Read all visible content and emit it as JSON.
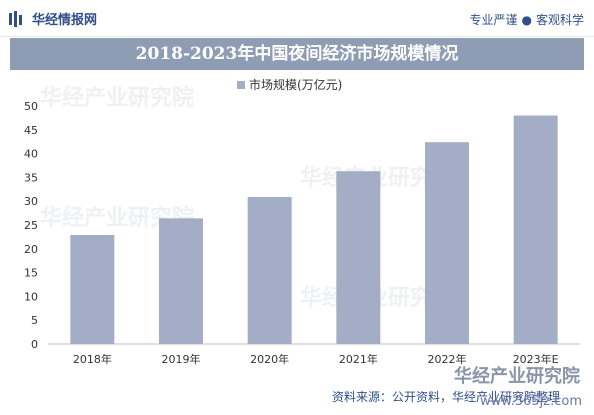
{
  "header": {
    "brand": "华经情报网",
    "slogan_left": "专业严谨",
    "slogan_sep": "●",
    "slogan_right": "客观科学"
  },
  "watermark": {
    "text": "华经产业研究院",
    "site": "www.365jz.com"
  },
  "footer": {
    "source": "资料来源：公开资料，华经产业研究院整理"
  },
  "chart_data": {
    "type": "bar",
    "title": "2018-2023年中国夜间经济市场规模情况",
    "categories": [
      "2018年",
      "2019年",
      "2020年",
      "2021年",
      "2022年",
      "2023年E"
    ],
    "series": [
      {
        "name": "市场规模(万亿元)",
        "values": [
          22.9,
          26.4,
          30.9,
          36.3,
          42.4,
          48.0
        ]
      }
    ],
    "ylim": [
      0,
      50
    ],
    "yticks": [
      0,
      5,
      10,
      15,
      20,
      25,
      30,
      35,
      40,
      45,
      50
    ],
    "grid": false,
    "legend": "top",
    "colors": {
      "bar": "#a3aec6",
      "title_bg": "#8f9db4",
      "brand": "#2f4f8a"
    }
  }
}
